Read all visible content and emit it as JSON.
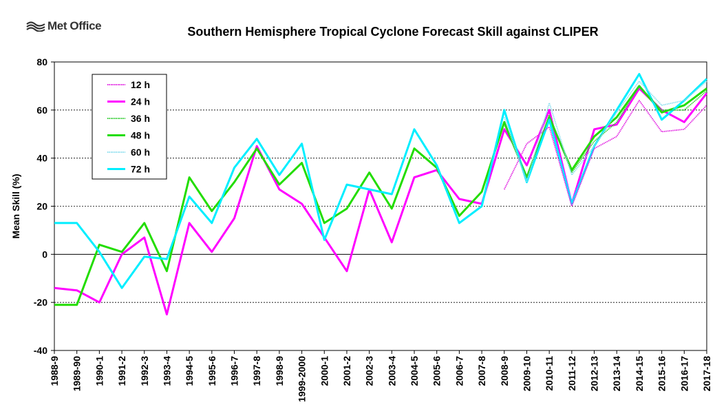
{
  "logo": {
    "text": "Met Office"
  },
  "chart_data": {
    "type": "line",
    "title": "Southern Hemisphere Tropical Cyclone Forecast Skill against CLIPER",
    "ylabel": "Mean Skill (%)",
    "xlabel": "",
    "ylim": [
      -40,
      80
    ],
    "yticks": [
      -40,
      -20,
      0,
      20,
      40,
      60,
      80
    ],
    "grid": "horizontal dashed at 20 and 40 and 60",
    "legend_position": "top-left",
    "categories": [
      "1988-9",
      "1989-90",
      "1990-1",
      "1991-2",
      "1992-3",
      "1993-4",
      "1994-5",
      "1995-6",
      "1996-7",
      "1997-8",
      "1998-9",
      "1999-2000",
      "2000-1",
      "2001-2",
      "2002-3",
      "2003-4",
      "2004-5",
      "2005-6",
      "2006-7",
      "2007-8",
      "2008-9",
      "2009-10",
      "2010-11",
      "2011-12",
      "2012-13",
      "2013-14",
      "2014-15",
      "2015-16",
      "2016-17",
      "2017-18"
    ],
    "series": [
      {
        "name": "12 h",
        "color": "#e11ee1",
        "style": "thin",
        "values": [
          null,
          null,
          null,
          null,
          null,
          null,
          null,
          null,
          null,
          null,
          null,
          null,
          null,
          null,
          null,
          null,
          null,
          null,
          null,
          null,
          27,
          46,
          53,
          20,
          44,
          49,
          64,
          51,
          52,
          62
        ]
      },
      {
        "name": "24 h",
        "color": "#ff00ff",
        "style": "thick",
        "values": [
          -14,
          -15,
          -20,
          0,
          7,
          -25,
          13,
          1,
          15,
          45,
          27,
          21,
          7,
          -7,
          27,
          5,
          32,
          35,
          23,
          21,
          52,
          37,
          60,
          21,
          52,
          54,
          69,
          60,
          55,
          67
        ]
      },
      {
        "name": "36 h",
        "color": "#33cc33",
        "style": "thin",
        "values": [
          null,
          null,
          null,
          null,
          null,
          null,
          null,
          null,
          null,
          null,
          null,
          null,
          null,
          null,
          null,
          null,
          null,
          null,
          null,
          null,
          54,
          32,
          58,
          34,
          47,
          55,
          70,
          60,
          60,
          68
        ]
      },
      {
        "name": "48 h",
        "color": "#22dd00",
        "style": "thick",
        "values": [
          -21,
          -21,
          4,
          1,
          13,
          -7,
          32,
          18,
          30,
          44,
          29,
          38,
          13,
          19,
          34,
          19,
          44,
          36,
          16,
          26,
          55,
          32,
          57,
          35,
          49,
          57,
          70,
          59,
          62,
          69
        ]
      },
      {
        "name": "60 h",
        "color": "#88ddee",
        "style": "thin",
        "values": [
          null,
          null,
          null,
          null,
          null,
          null,
          null,
          null,
          null,
          null,
          null,
          null,
          null,
          null,
          null,
          null,
          null,
          null,
          null,
          null,
          57,
          30,
          63,
          33,
          45,
          59,
          72,
          62,
          64,
          72
        ]
      },
      {
        "name": "72 h",
        "color": "#00eeff",
        "style": "thick",
        "values": [
          13,
          13,
          1,
          -14,
          -1,
          -2,
          24,
          13,
          36,
          48,
          33,
          46,
          6,
          29,
          27,
          25,
          52,
          37,
          13,
          20,
          60,
          30,
          56,
          21,
          45,
          60,
          75,
          56,
          64,
          73
        ]
      }
    ]
  }
}
